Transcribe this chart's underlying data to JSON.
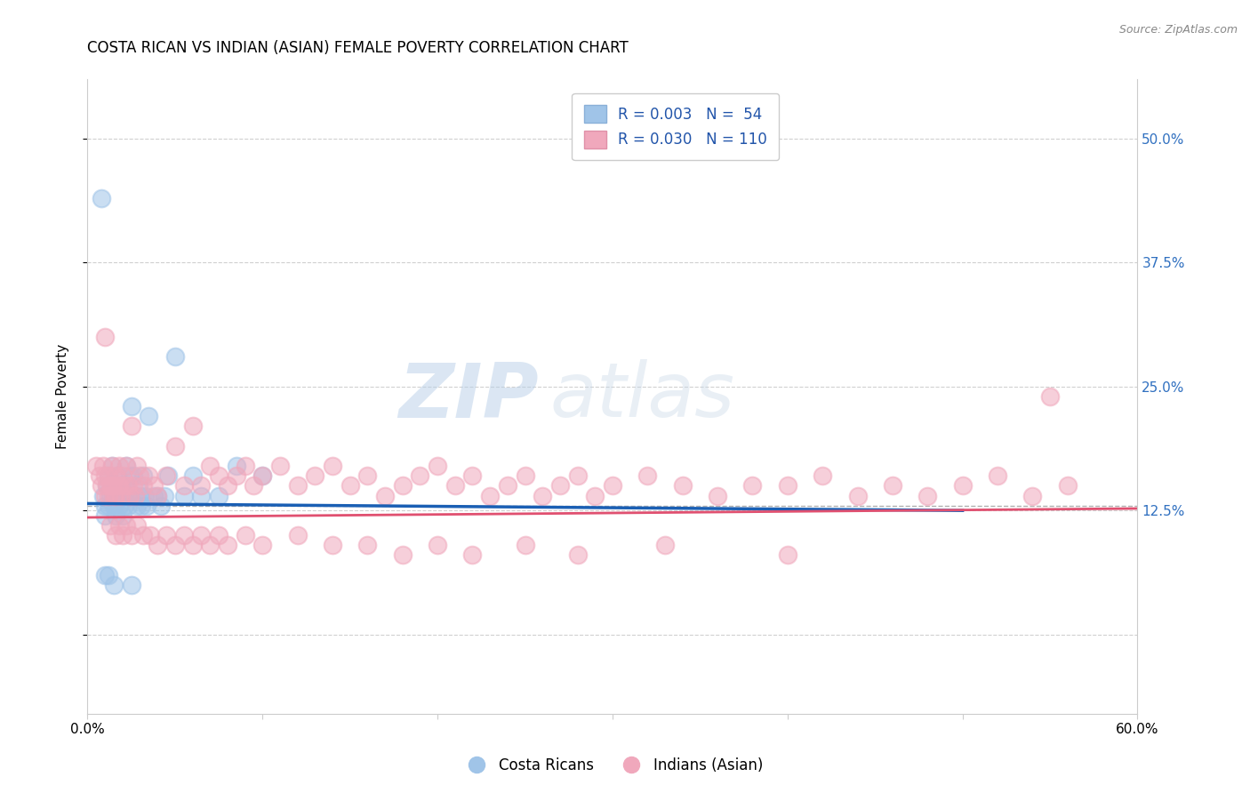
{
  "title": "COSTA RICAN VS INDIAN (ASIAN) FEMALE POVERTY CORRELATION CHART",
  "source": "Source: ZipAtlas.com",
  "ylabel": "Female Poverty",
  "xmin": 0.0,
  "xmax": 0.6,
  "ymin": -0.08,
  "ymax": 0.56,
  "ytick_positions": [
    0.0,
    0.125,
    0.25,
    0.375,
    0.5
  ],
  "ytick_labels_right": [
    "",
    "12.5%",
    "25.0%",
    "37.5%",
    "50.0%"
  ],
  "blue_color": "#a0c4e8",
  "pink_color": "#f0a8bc",
  "blue_line_color": "#1a5fb4",
  "pink_line_color": "#e05070",
  "watermark_zip": "ZIP",
  "watermark_atlas": "atlas",
  "blue_line_y_start": 0.132,
  "blue_line_y_end": 0.125,
  "blue_line_x_end": 0.5,
  "pink_line_y_start": 0.118,
  "pink_line_y_end": 0.127,
  "dashed_line_y": 0.13,
  "legend_blue_label": "R = 0.003   N =  54",
  "legend_pink_label": "R = 0.030   N = 110",
  "legend_bottom_blue": "Costa Ricans",
  "legend_bottom_pink": "Indians (Asian)",
  "blue_scatter_x": [
    0.008,
    0.009,
    0.01,
    0.01,
    0.011,
    0.012,
    0.012,
    0.013,
    0.014,
    0.014,
    0.015,
    0.015,
    0.016,
    0.016,
    0.017,
    0.018,
    0.018,
    0.019,
    0.02,
    0.02,
    0.021,
    0.021,
    0.022,
    0.022,
    0.023,
    0.024,
    0.024,
    0.025,
    0.026,
    0.027,
    0.028,
    0.029,
    0.03,
    0.031,
    0.032,
    0.033,
    0.034,
    0.035,
    0.038,
    0.04,
    0.042,
    0.044,
    0.046,
    0.05,
    0.055,
    0.06,
    0.065,
    0.075,
    0.085,
    0.1,
    0.01,
    0.012,
    0.015,
    0.025
  ],
  "blue_scatter_y": [
    0.44,
    0.14,
    0.13,
    0.12,
    0.15,
    0.16,
    0.13,
    0.14,
    0.17,
    0.15,
    0.14,
    0.13,
    0.12,
    0.15,
    0.16,
    0.14,
    0.13,
    0.15,
    0.12,
    0.14,
    0.13,
    0.14,
    0.17,
    0.15,
    0.13,
    0.16,
    0.14,
    0.23,
    0.16,
    0.14,
    0.13,
    0.15,
    0.14,
    0.13,
    0.16,
    0.14,
    0.13,
    0.22,
    0.14,
    0.14,
    0.13,
    0.14,
    0.16,
    0.28,
    0.14,
    0.16,
    0.14,
    0.14,
    0.17,
    0.16,
    0.06,
    0.06,
    0.05,
    0.05
  ],
  "pink_scatter_x": [
    0.005,
    0.007,
    0.008,
    0.009,
    0.01,
    0.01,
    0.011,
    0.012,
    0.012,
    0.013,
    0.014,
    0.014,
    0.015,
    0.016,
    0.016,
    0.017,
    0.018,
    0.018,
    0.019,
    0.02,
    0.021,
    0.022,
    0.023,
    0.024,
    0.025,
    0.026,
    0.027,
    0.028,
    0.03,
    0.032,
    0.035,
    0.038,
    0.04,
    0.045,
    0.05,
    0.055,
    0.06,
    0.065,
    0.07,
    0.075,
    0.08,
    0.085,
    0.09,
    0.095,
    0.1,
    0.11,
    0.12,
    0.13,
    0.14,
    0.15,
    0.16,
    0.17,
    0.18,
    0.19,
    0.2,
    0.21,
    0.22,
    0.23,
    0.24,
    0.25,
    0.26,
    0.27,
    0.28,
    0.29,
    0.3,
    0.32,
    0.34,
    0.36,
    0.38,
    0.4,
    0.42,
    0.44,
    0.46,
    0.48,
    0.5,
    0.52,
    0.54,
    0.56,
    0.013,
    0.016,
    0.018,
    0.02,
    0.022,
    0.025,
    0.028,
    0.032,
    0.036,
    0.04,
    0.045,
    0.05,
    0.055,
    0.06,
    0.065,
    0.07,
    0.075,
    0.08,
    0.09,
    0.1,
    0.12,
    0.14,
    0.16,
    0.18,
    0.2,
    0.22,
    0.25,
    0.28,
    0.33,
    0.4,
    0.55,
    0.01
  ],
  "pink_scatter_y": [
    0.17,
    0.16,
    0.15,
    0.17,
    0.16,
    0.14,
    0.15,
    0.16,
    0.14,
    0.15,
    0.17,
    0.15,
    0.14,
    0.16,
    0.14,
    0.15,
    0.17,
    0.15,
    0.14,
    0.16,
    0.15,
    0.17,
    0.15,
    0.14,
    0.21,
    0.15,
    0.14,
    0.17,
    0.16,
    0.15,
    0.16,
    0.15,
    0.14,
    0.16,
    0.19,
    0.15,
    0.21,
    0.15,
    0.17,
    0.16,
    0.15,
    0.16,
    0.17,
    0.15,
    0.16,
    0.17,
    0.15,
    0.16,
    0.17,
    0.15,
    0.16,
    0.14,
    0.15,
    0.16,
    0.17,
    0.15,
    0.16,
    0.14,
    0.15,
    0.16,
    0.14,
    0.15,
    0.16,
    0.14,
    0.15,
    0.16,
    0.15,
    0.14,
    0.15,
    0.15,
    0.16,
    0.14,
    0.15,
    0.14,
    0.15,
    0.16,
    0.14,
    0.15,
    0.11,
    0.1,
    0.11,
    0.1,
    0.11,
    0.1,
    0.11,
    0.1,
    0.1,
    0.09,
    0.1,
    0.09,
    0.1,
    0.09,
    0.1,
    0.09,
    0.1,
    0.09,
    0.1,
    0.09,
    0.1,
    0.09,
    0.09,
    0.08,
    0.09,
    0.08,
    0.09,
    0.08,
    0.09,
    0.08,
    0.24,
    0.3
  ]
}
